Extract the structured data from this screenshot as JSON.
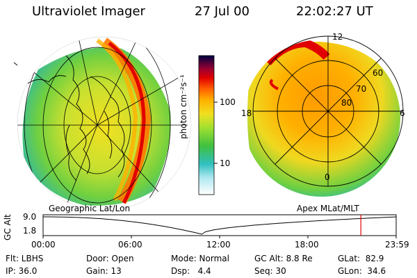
{
  "header": {
    "title": "Ultraviolet Imager",
    "date": "27 Jul 00",
    "time": "22:02:27 UT"
  },
  "colorbar": {
    "unit_label": "photon cm⁻²s⁻¹",
    "tick_100": "100",
    "tick_10": "10"
  },
  "left_panel": {
    "label": "Geographic Lat/Lon"
  },
  "right_panel": {
    "label": "Apex MLat/MLT",
    "mlt_12": "12",
    "mlt_18": "18",
    "mlt_6": "6",
    "mlt_0": "0",
    "lat_60": "60",
    "lat_70": "70",
    "lat_80": "80"
  },
  "altitude_plot": {
    "ylabel": "GC Alt",
    "y_top": "9.0",
    "y_bottom": "1.8",
    "x_ticks": [
      "00:00",
      "06:00",
      "12:00",
      "18:00",
      "23:59"
    ],
    "current_time_fraction": 0.9
  },
  "info": {
    "flt": "Flt: LBHS",
    "ip": "IP: 36.0",
    "door": "Door: Open",
    "gain": "Gain: 13",
    "mode": "Mode: Normal",
    "dsp": "Dsp:   4.4",
    "gcalt": "GC Alt: 8.8 Re",
    "seq": "Seq: 30",
    "glat": "GLat:  82.9",
    "glon": "GLon:  34.6"
  },
  "colors": {
    "marker": "#e00000",
    "background": "#ffffff"
  }
}
